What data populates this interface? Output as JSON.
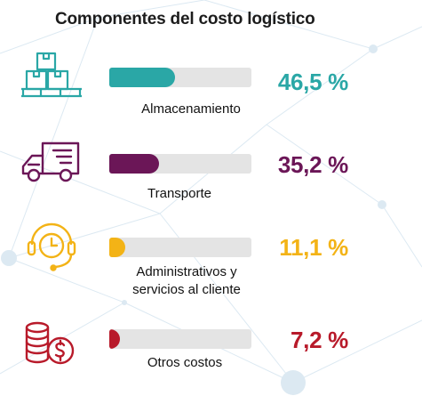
{
  "title": "Componentes del costo logístico",
  "colors": {
    "teal": "#2aa7a6",
    "purple": "#6b1657",
    "yellow": "#f3b316",
    "red": "#b81a2a",
    "track": "#e4e4e4",
    "network": "#dce9f2"
  },
  "chart_data": {
    "type": "bar",
    "title": "Componentes del costo logístico",
    "unit": "%",
    "categories": [
      "Almacenamiento",
      "Transporte",
      "Administrativos y servicios al cliente",
      "Otros costos"
    ],
    "values": [
      46.5,
      35.2,
      11.1,
      7.2
    ],
    "xlabel": "",
    "ylabel": "",
    "ylim": [
      0,
      100
    ]
  },
  "rows": [
    {
      "label_lines": [
        "Almacenamiento"
      ],
      "pct_text": "46,5 %",
      "value": 46.5,
      "color": "#2aa7a6",
      "icon": "warehouse-boxes-icon"
    },
    {
      "label_lines": [
        "Transporte"
      ],
      "pct_text": "35,2 %",
      "value": 35.2,
      "color": "#6b1657",
      "icon": "truck-icon"
    },
    {
      "label_lines": [
        "Administrativos y",
        "servicios al cliente"
      ],
      "pct_text": "11,1 %",
      "value": 11.1,
      "color": "#f3b316",
      "icon": "customer-service-clock-icon"
    },
    {
      "label_lines": [
        "Otros costos"
      ],
      "pct_text": "7,2 %",
      "value": 7.2,
      "color": "#b81a2a",
      "icon": "coins-dollar-icon"
    }
  ]
}
